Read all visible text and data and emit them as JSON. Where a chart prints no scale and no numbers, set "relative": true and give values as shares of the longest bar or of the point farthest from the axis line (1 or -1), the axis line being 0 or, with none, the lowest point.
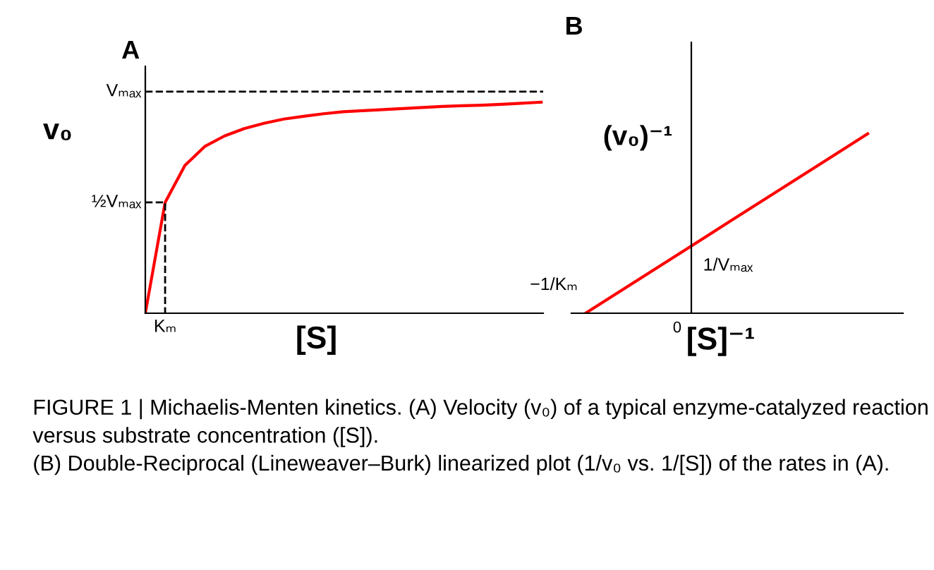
{
  "chart_data": [
    {
      "type": "line",
      "title": "A",
      "relative": true,
      "ylabel": "v₀",
      "xlabel": "[S]",
      "grid": false,
      "categories": [
        null,
        null,
        null,
        null,
        null,
        null,
        null,
        null,
        null,
        null,
        null,
        null,
        null,
        null,
        null,
        null,
        null,
        null,
        null,
        null,
        null
      ],
      "series": [
        {
          "color": "#ff0000",
          "values": [
            0,
            0.525,
            0.7,
            0.79,
            0.84,
            0.875,
            0.9,
            0.92,
            0.933,
            0.945,
            0.955,
            0.96,
            0.965,
            0.97,
            0.975,
            0.98,
            0.983,
            0.986,
            0.99,
            0.995,
            1
          ]
        }
      ],
      "ref_lines": [
        {
          "axis": "y",
          "value": 1.05,
          "label": "Vₘₐₓ",
          "color": "#000000",
          "line_style": "dashed"
        },
        {
          "axis": "y",
          "value": 0.525,
          "label": "½Vₘₐₓ",
          "color": "#000000",
          "line_style": "dashed"
        }
      ],
      "annotations": [
        "Kₘ"
      ]
    },
    {
      "type": "line",
      "title": "B",
      "relative": true,
      "ylabel": "(v₀)⁻¹",
      "xlabel": "[S]⁻¹",
      "grid": false,
      "categories": [
        null,
        null,
        null,
        null,
        null,
        null,
        null,
        null,
        null
      ],
      "series": [
        {
          "color": "#ff0000",
          "values": [
            0,
            0.125,
            0.25,
            0.375,
            0.5,
            0.625,
            0.75,
            0.875,
            1
          ]
        }
      ],
      "annotations": [
        "0",
        "−1/Kₘ",
        "1/Vₘₐₓ",
        "FIGURE 1 | Michaelis-Menten kinetics. (A) Velocity (v₀) of a typical enzyme-catalyzed reaction versus substrate concentration ([S]).\n(B) Double-Reciprocal (Lineweaver–Burk) linearized plot (1/v₀ vs. 1/[S]) of the rates in (A)."
      ]
    }
  ]
}
